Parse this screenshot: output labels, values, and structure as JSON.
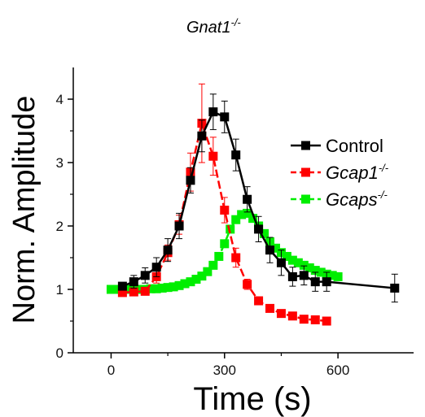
{
  "chart_data": {
    "type": "line",
    "title": "Gnat1",
    "title_superscript": "-/-",
    "xlabel": "Time (s)",
    "ylabel": "Norm. Amplitude",
    "xlim": [
      -100,
      800
    ],
    "ylim": [
      0,
      4.5
    ],
    "x_ticks": [
      0,
      300,
      600
    ],
    "y_ticks": [
      0,
      1,
      2,
      3,
      4
    ],
    "legend_position": "right",
    "grid": false,
    "series": [
      {
        "name": "Control",
        "name_superscript": "",
        "italic": false,
        "color": "#000000",
        "dashed": false,
        "x": [
          30,
          60,
          90,
          120,
          150,
          180,
          210,
          240,
          270,
          300,
          330,
          360,
          390,
          420,
          450,
          480,
          510,
          540,
          570,
          750
        ],
        "y": [
          1.05,
          1.12,
          1.22,
          1.35,
          1.62,
          2.0,
          2.72,
          3.42,
          3.8,
          3.72,
          3.12,
          2.42,
          1.95,
          1.62,
          1.42,
          1.2,
          1.22,
          1.12,
          1.12,
          1.02
        ],
        "err": [
          0.06,
          0.1,
          0.12,
          0.15,
          0.18,
          0.2,
          0.2,
          0.25,
          0.28,
          0.25,
          0.25,
          0.2,
          0.2,
          0.2,
          0.2,
          0.15,
          0.15,
          0.15,
          0.15,
          0.22
        ]
      },
      {
        "name": "Gcap1",
        "name_superscript": "-/-",
        "italic": true,
        "color": "#ff0000",
        "dashed": true,
        "x": [
          30,
          60,
          90,
          120,
          150,
          180,
          210,
          240,
          270,
          300,
          330,
          360,
          390,
          420,
          450,
          480,
          510,
          540,
          570
        ],
        "y": [
          0.95,
          0.96,
          0.97,
          1.2,
          1.58,
          2.02,
          2.85,
          3.62,
          3.1,
          2.25,
          1.5,
          1.08,
          0.82,
          0.7,
          0.62,
          0.58,
          0.53,
          0.52,
          0.5
        ],
        "err": [
          0.05,
          0.05,
          0.05,
          0.1,
          0.12,
          0.15,
          0.3,
          0.62,
          0.3,
          0.2,
          0.15,
          0.08,
          0.05,
          0.04,
          0.03,
          0.03,
          0.03,
          0.03,
          0.03
        ]
      },
      {
        "name": "Gcaps",
        "name_superscript": "-/-",
        "italic": true,
        "color": "#00ee00",
        "dashed": true,
        "x": [
          0,
          15,
          30,
          45,
          60,
          75,
          90,
          105,
          120,
          135,
          150,
          165,
          180,
          195,
          210,
          225,
          240,
          255,
          270,
          285,
          300,
          315,
          330,
          345,
          360,
          375,
          390,
          405,
          420,
          435,
          450,
          465,
          480,
          495,
          510,
          525,
          540,
          555,
          570,
          585,
          600
        ],
        "y": [
          1.0,
          1.0,
          1.0,
          1.0,
          1.0,
          1.0,
          1.0,
          1.01,
          1.01,
          1.02,
          1.03,
          1.04,
          1.06,
          1.09,
          1.12,
          1.16,
          1.21,
          1.28,
          1.38,
          1.52,
          1.72,
          1.95,
          2.1,
          2.18,
          2.2,
          2.12,
          2.0,
          1.88,
          1.75,
          1.65,
          1.58,
          1.52,
          1.46,
          1.42,
          1.38,
          1.34,
          1.3,
          1.27,
          1.24,
          1.22,
          1.2
        ],
        "err": []
      }
    ]
  }
}
